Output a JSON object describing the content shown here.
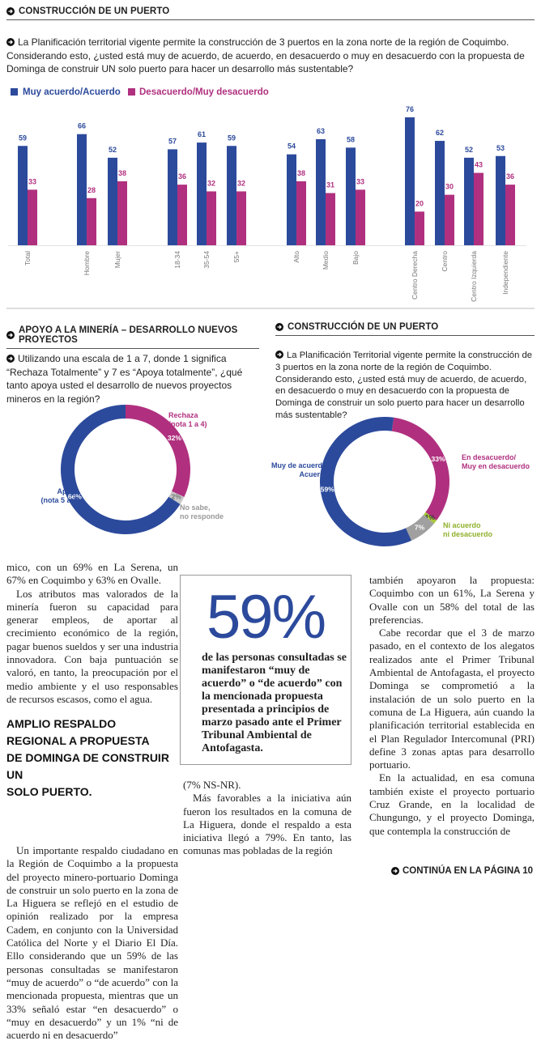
{
  "chart_data": [
    {
      "type": "bar",
      "header": "CONSTRUCCIÓN DE UN PUERTO",
      "title": "La Planificación territorial vigente permite la construcción de 3 puertos en la zona norte de la región de Coquimbo. Considerando esto, ¿usted está muy de acuerdo, de acuerdo, en desacuerdo o muy en desacuerdo con la propuesta de Dominga de construir UN solo puerto para hacer un desarrollo más sustentable?",
      "categories": [
        "Total",
        "Hombre",
        "Mujer",
        "18-34",
        "35-54",
        "55+",
        "Alto",
        "Medio",
        "Bajo",
        "Centro Derecha",
        "Centro",
        "Centro Izquierda",
        "Independiente"
      ],
      "series": [
        {
          "name": "Muy acuerdo/Acuerdo",
          "color": "#2c4a9c",
          "values": [
            59,
            66,
            52,
            57,
            61,
            59,
            54,
            63,
            58,
            76,
            62,
            52,
            53
          ]
        },
        {
          "name": "Desacuerdo/Muy desacuerdo",
          "color": "#b0307f",
          "values": [
            33,
            28,
            38,
            36,
            32,
            32,
            38,
            31,
            33,
            20,
            30,
            43,
            36
          ]
        }
      ]
    },
    {
      "type": "pie",
      "header": "APOYO A LA MINERÍA – DESARROLLO NUEVOS PROYECTOS",
      "title": "Utilizando una escala de 1 a 7, donde 1 significa “Rechaza Totalmente” y 7 es “Apoya totalmente”, ¿qué tanto apoya usted el desarrollo de nuevos proyectos mineros en la región?",
      "categories": [
        "Rechaza\n(nota 1 a 4)",
        "No sabe,\nno responde",
        "Apoya\n(nota 5 a 7)"
      ],
      "values": [
        32,
        2,
        66
      ],
      "value_labels": [
        "32%",
        "2%",
        "66%"
      ],
      "colors": [
        "#b0307f",
        "#c8c8c8",
        "#2c4a9c"
      ]
    },
    {
      "type": "pie",
      "header": "CONSTRUCCIÓN DE UN PUERTO",
      "title": "La Planificación Territorial vigente permite la construcción de 3 puertos en la zona norte de la región de Coquimbo. Considerando esto, ¿usted está muy de acuerdo, de acuerdo, en desacuerdo o muy en desacuerdo con la propuesta de Dominga de construir un solo puerto para hacer un desarrollo más sustentable?",
      "categories": [
        "En desacuerdo/\nMuy en desacuerdo",
        "Ni acuerdo\nni desacuerdo",
        null,
        "Muy de acuerdo/\nAcuerdo"
      ],
      "values": [
        33,
        1,
        7,
        59
      ],
      "value_labels": [
        "33%",
        "1%",
        "7%",
        "59%"
      ],
      "colors": [
        "#b0307f",
        "#a6c83a",
        "#a0a0a0",
        "#2c4a9c"
      ]
    }
  ],
  "article": {
    "col1_top": [
      "mico, con un 69% en La Serena, un 67% en Coquimbo y 63% en Ovalle.",
      "Los atributos mas valorados de la minería fueron su capacidad para generar empleos, de aportar al crecimiento económico de la región, pagar buenos sueldos y ser una industria innovadora. Con baja puntuación se valoró, en tanto, la preocupación por el medio ambiente y el uso responsables de recursos escasos, como el agua."
    ],
    "subheading": "AMPLIO RESPALDO\nREGIONAL A PROPUESTA\nDE DOMINGA DE CONSTRUIR UN\nSOLO PUERTO.",
    "col1_bottom": [
      "Un importante respaldo ciudadano en la Región de Coquimbo a la propuesta del proyecto minero-portuario Dominga de construir un solo puerto en la zona de La Higuera se reflejó en el estudio de opinión realizado por la empresa Cadem, en conjunto con la Universidad Católica del Norte y el Diario El Día. Ello considerando que un 59% de las personas consultadas se manifestaron “muy de acuerdo” o “de acuerdo” con la mencionada propuesta, mientras que un 33% señaló estar “en desacuerdo” o “muy en desacuerdo” y un 1% “ni de acuerdo ni en desacuerdo”"
    ],
    "col2": [
      "(7% NS-NR).",
      "Más favorables a la iniciativa aún fueron los resultados en la comuna de La Higuera, donde el respaldo a esta iniciativa llegó a 79%. En tanto, las comunas mas pobladas de la región"
    ],
    "col3": [
      "también apoyaron la propuesta: Coquimbo con un 61%, La Serena y Ovalle con un 58% del total de las preferencias.",
      "Cabe recordar que el 3 de marzo pasado, en el contexto de los alegatos realizados ante el Primer Tribunal Ambiental de Antofagasta, el proyecto Dominga se comprometió a la instalación de un solo puerto en la comuna de La Higuera, aún cuando la planificación territorial establecida en el Plan Regulador Intercomunal (PRI) define 3 zonas aptas para desarrollo portuario.",
      "En la actualidad, en esa comuna también existe el proyecto portuario Cruz Grande, en la localidad de Chungungo, y el proyecto Dominga, que contempla la construcción de"
    ],
    "continues": "CONTINÚA EN LA PÁGINA 10"
  },
  "callout": {
    "big": "59%",
    "text": "de las personas consultadas se manifestaron “muy de acuerdo” o “de acuerdo” con la mencionada propuesta presentada a principios de marzo pasado ante el Primer Tribunal Ambiental de Antofagasta."
  }
}
